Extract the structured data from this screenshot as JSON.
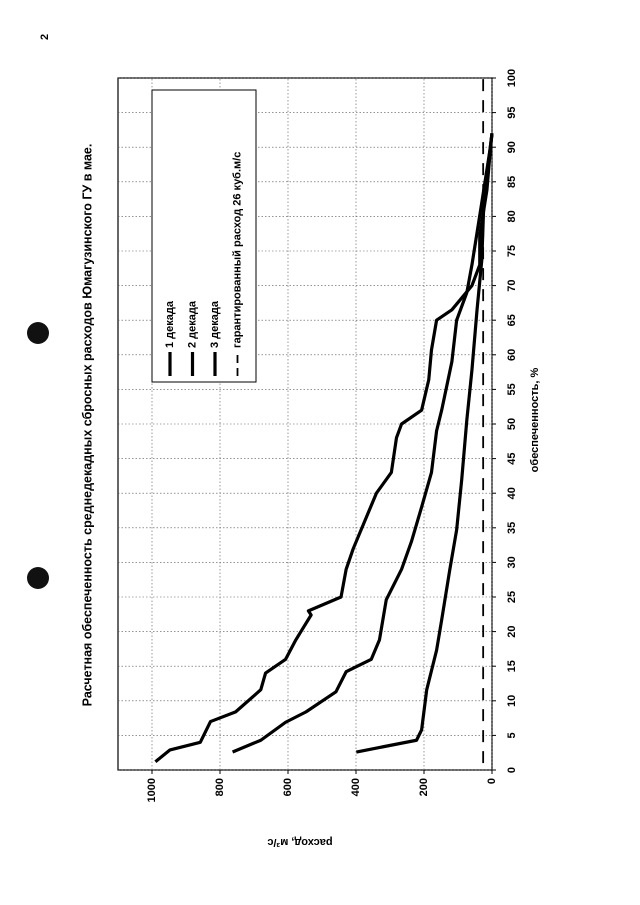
{
  "page_number": "2",
  "chart_data": {
    "type": "line",
    "title": "Расчетная обеспеченность среднедекадных сбросных расходов Юмагузинского ГУ в мае.",
    "xlabel": "обеспеченность, %",
    "ylabel": "расход, м³/с",
    "xlim": [
      0,
      100
    ],
    "xticks": [
      0,
      5,
      10,
      15,
      20,
      25,
      30,
      35,
      40,
      45,
      50,
      55,
      60,
      65,
      70,
      75,
      80,
      85,
      90,
      95,
      100
    ],
    "ylim": [
      0,
      1100
    ],
    "yticks": [
      0,
      200,
      400,
      600,
      800,
      1000
    ],
    "grid": true,
    "legend": "upper right",
    "series": [
      {
        "name": "1 декада",
        "color": "#000000",
        "dash": false,
        "x": [
          1.2,
          2.9,
          4,
          7,
          8.4,
          11.6,
          14,
          16,
          18.8,
          20,
          22.4,
          23,
          25,
          29,
          32,
          40,
          43,
          48,
          50,
          52,
          56.4,
          60.7,
          65,
          66.5,
          70,
          73,
          77.3,
          83.8,
          89.6,
          92
        ],
        "values": [
          990,
          947,
          858,
          828,
          754,
          680,
          666,
          607,
          577,
          562,
          532,
          540,
          444,
          429,
          408,
          340,
          296,
          281,
          266,
          207,
          186,
          178,
          163,
          118,
          59,
          36,
          36,
          15,
          5,
          0
        ]
      },
      {
        "name": "2 декада",
        "color": "#000000",
        "dash": false,
        "x": [
          2.6,
          4.3,
          6.9,
          8.4,
          11.3,
          14.2,
          16,
          18.8,
          24.6,
          29,
          33,
          38,
          43,
          49,
          52,
          59,
          65,
          69,
          73,
          82,
          89.6,
          92
        ],
        "values": [
          763,
          680,
          607,
          547,
          459,
          429,
          355,
          331,
          311,
          266,
          237,
          207,
          178,
          163,
          148,
          118,
          104,
          74,
          59,
          30,
          6,
          0
        ]
      },
      {
        "name": "3 декада",
        "color": "#000000",
        "dash": false,
        "x": [
          2.6,
          4.3,
          5.8,
          11.6,
          17.3,
          21.7,
          29,
          34.7,
          42,
          50.6,
          57.8,
          66.5,
          73.7,
          82,
          89.6,
          92
        ],
        "values": [
          399,
          222,
          207,
          192,
          163,
          148,
          124,
          104,
          89,
          74,
          59,
          44,
          30,
          24,
          6,
          0
        ]
      },
      {
        "name": "гарантированный расход 26 куб.м/с",
        "color": "#000000",
        "dash": true,
        "x": [
          1,
          100
        ],
        "values": [
          26,
          26
        ]
      }
    ]
  }
}
